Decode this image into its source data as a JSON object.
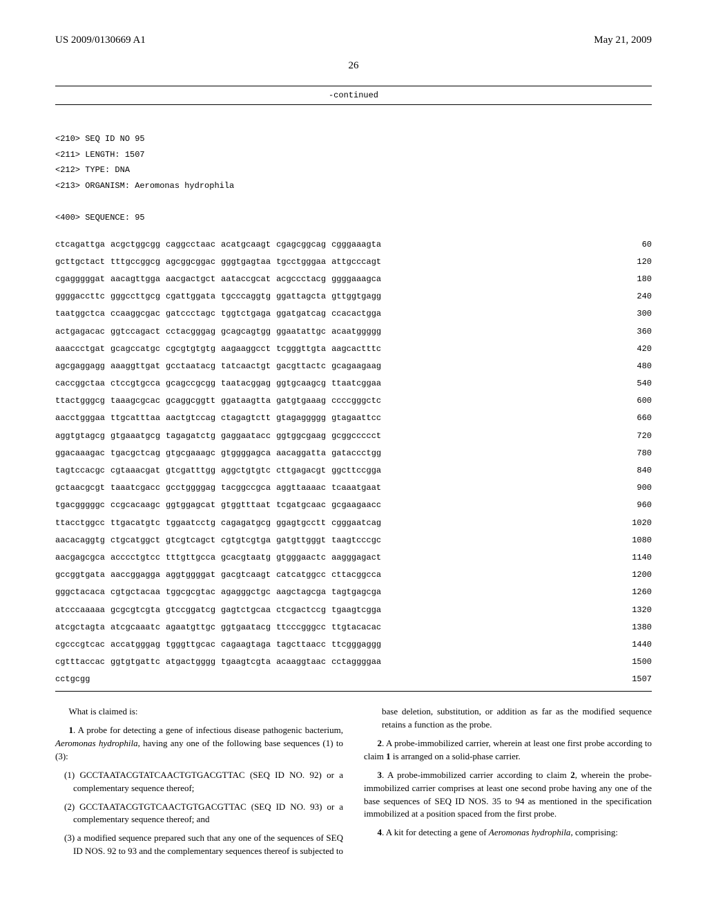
{
  "header": {
    "pub_number": "US 2009/0130669 A1",
    "pub_date": "May 21, 2009"
  },
  "page_number": "26",
  "continued_label": "-continued",
  "sequence_meta": {
    "l1": "<210> SEQ ID NO 95",
    "l2": "<211> LENGTH: 1507",
    "l3": "<212> TYPE: DNA",
    "l4": "<213> ORGANISM: Aeromonas hydrophila",
    "l5": "<400> SEQUENCE: 95"
  },
  "rows": [
    {
      "g": [
        "ctcagattga",
        "acgctggcgg",
        "caggcctaac",
        "acatgcaagt",
        "cgagcggcag",
        "cgggaaagta"
      ],
      "n": "60"
    },
    {
      "g": [
        "gcttgctact",
        "tttgccggcg",
        "agcggcggac",
        "gggtgagtaa",
        "tgcctgggaa",
        "attgcccagt"
      ],
      "n": "120"
    },
    {
      "g": [
        "cgagggggat",
        "aacagttgga",
        "aacgactgct",
        "aataccgcat",
        "acgccctacg",
        "ggggaaagca"
      ],
      "n": "180"
    },
    {
      "g": [
        "ggggaccttc",
        "gggccttgcg",
        "cgattggata",
        "tgcccaggtg",
        "ggattagcta",
        "gttggtgagg"
      ],
      "n": "240"
    },
    {
      "g": [
        "taatggctca",
        "ccaaggcgac",
        "gatccctagc",
        "tggtctgaga",
        "ggatgatcag",
        "ccacactgga"
      ],
      "n": "300"
    },
    {
      "g": [
        "actgagacac",
        "ggtccagact",
        "cctacgggag",
        "gcagcagtgg",
        "ggaatattgc",
        "acaatggggg"
      ],
      "n": "360"
    },
    {
      "g": [
        "aaaccctgat",
        "gcagccatgc",
        "cgcgtgtgtg",
        "aagaaggcct",
        "tcgggttgta",
        "aagcactttc"
      ],
      "n": "420"
    },
    {
      "g": [
        "agcgaggagg",
        "aaaggttgat",
        "gcctaatacg",
        "tatcaactgt",
        "gacgttactc",
        "gcagaagaag"
      ],
      "n": "480"
    },
    {
      "g": [
        "caccggctaa",
        "ctccgtgcca",
        "gcagccgcgg",
        "taatacggag",
        "ggtgcaagcg",
        "ttaatcggaa"
      ],
      "n": "540"
    },
    {
      "g": [
        "ttactgggcg",
        "taaagcgcac",
        "gcaggcggtt",
        "ggataagtta",
        "gatgtgaaag",
        "ccccgggctc"
      ],
      "n": "600"
    },
    {
      "g": [
        "aacctgggaa",
        "ttgcatttaa",
        "aactgtccag",
        "ctagagtctt",
        "gtagaggggg",
        "gtagaattcc"
      ],
      "n": "660"
    },
    {
      "g": [
        "aggtgtagcg",
        "gtgaaatgcg",
        "tagagatctg",
        "gaggaatacc",
        "ggtggcgaag",
        "gcggccccct"
      ],
      "n": "720"
    },
    {
      "g": [
        "ggacaaagac",
        "tgacgctcag",
        "gtgcgaaagc",
        "gtggggagca",
        "aacaggatta",
        "gataccctgg"
      ],
      "n": "780"
    },
    {
      "g": [
        "tagtccacgc",
        "cgtaaacgat",
        "gtcgatttgg",
        "aggctgtgtc",
        "cttgagacgt",
        "ggcttccgga"
      ],
      "n": "840"
    },
    {
      "g": [
        "gctaacgcgt",
        "taaatcgacc",
        "gcctggggag",
        "tacggccgca",
        "aggttaaaac",
        "tcaaatgaat"
      ],
      "n": "900"
    },
    {
      "g": [
        "tgacgggggc",
        "ccgcacaagc",
        "ggtggagcat",
        "gtggtttaat",
        "tcgatgcaac",
        "gcgaagaacc"
      ],
      "n": "960"
    },
    {
      "g": [
        "ttacctggcc",
        "ttgacatgtc",
        "tggaatcctg",
        "cagagatgcg",
        "ggagtgcctt",
        "cgggaatcag"
      ],
      "n": "1020"
    },
    {
      "g": [
        "aacacaggtg",
        "ctgcatggct",
        "gtcgtcagct",
        "cgtgtcgtga",
        "gatgttgggt",
        "taagtcccgc"
      ],
      "n": "1080"
    },
    {
      "g": [
        "aacgagcgca",
        "acccctgtcc",
        "tttgttgcca",
        "gcacgtaatg",
        "gtgggaactc",
        "aagggagact"
      ],
      "n": "1140"
    },
    {
      "g": [
        "gccggtgata",
        "aaccggagga",
        "aggtggggat",
        "gacgtcaagt",
        "catcatggcc",
        "cttacggcca"
      ],
      "n": "1200"
    },
    {
      "g": [
        "gggctacaca",
        "cgtgctacaa",
        "tggcgcgtac",
        "agagggctgc",
        "aagctagcga",
        "tagtgagcga"
      ],
      "n": "1260"
    },
    {
      "g": [
        "atcccaaaaa",
        "gcgcgtcgta",
        "gtccggatcg",
        "gagtctgcaa",
        "ctcgactccg",
        "tgaagtcgga"
      ],
      "n": "1320"
    },
    {
      "g": [
        "atcgctagta",
        "atcgcaaatc",
        "agaatgttgc",
        "ggtgaatacg",
        "ttcccgggcc",
        "ttgtacacac"
      ],
      "n": "1380"
    },
    {
      "g": [
        "cgcccgtcac",
        "accatgggag",
        "tgggttgcac",
        "cagaagtaga",
        "tagcttaacc",
        "ttcgggaggg"
      ],
      "n": "1440"
    },
    {
      "g": [
        "cgtttaccac",
        "ggtgtgattc",
        "atgactgggg",
        "tgaagtcgta",
        "acaaggtaac",
        "cctaggggaa"
      ],
      "n": "1500"
    },
    {
      "g": [
        "cctgcgg",
        "",
        "",
        "",
        "",
        ""
      ],
      "n": "1507"
    }
  ],
  "claims": {
    "intro": "What is claimed is:",
    "c1_lead": "1",
    "c1_text": ". A probe for detecting a gene of infectious disease pathogenic bacterium, ",
    "c1_em": "Aeromonas hydrophila",
    "c1_tail": ", having any one of the following base sequences (1) to (3):",
    "c1_1": "(1) GCCTAATACGTATCAACTGTGACGTTAC (SEQ ID NO. 92) or a complementary sequence thereof;",
    "c1_2": "(2) GCCTAATACGTGTCAACTGTGACGTTAC (SEQ ID NO. 93) or a complementary sequence thereof; and",
    "c1_3": "(3) a modified sequence prepared such that any one of the sequences of SEQ ID NOS. 92 to 93 and the complementary sequences thereof is subjected to base deletion, substitution, or addition as far as the modified sequence retains a function as the probe.",
    "c2_lead": "2",
    "c2_text": ". A probe-immobilized carrier, wherein at least one first probe according to claim ",
    "c2_ref": "1",
    "c2_tail": " is arranged on a solid-phase carrier.",
    "c3_lead": "3",
    "c3_text": ". A probe-immobilized carrier according to claim ",
    "c3_ref": "2",
    "c3_tail": ", wherein the probe-immobilized carrier comprises at least one second probe having any one of the base sequences of SEQ ID NOS. 35 to 94 as mentioned in the specification immobilized at a position spaced from the first probe.",
    "c4_lead": "4",
    "c4_text": ". A kit for detecting a gene of ",
    "c4_em": "Aeromonas hydrophila",
    "c4_tail": ", comprising:"
  }
}
